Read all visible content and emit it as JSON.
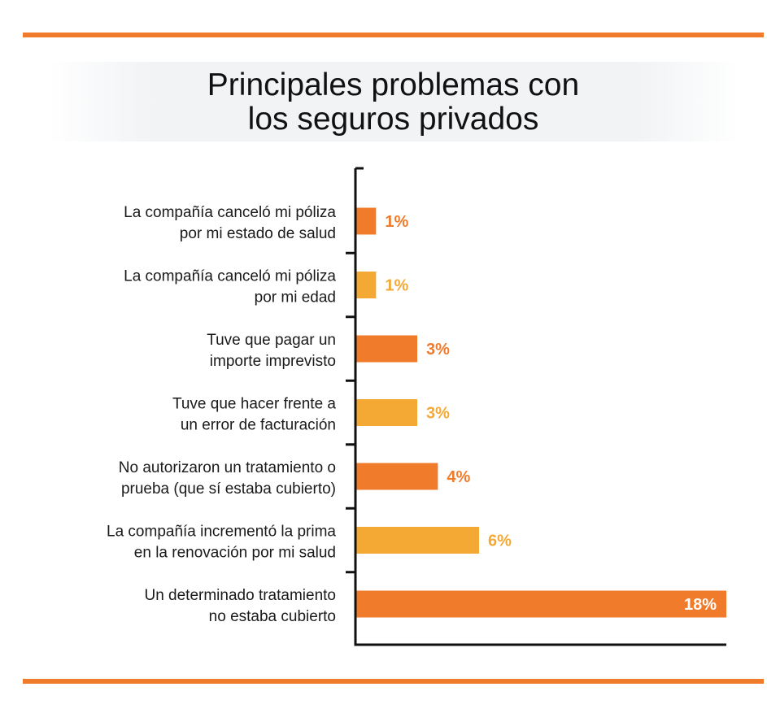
{
  "title": {
    "line1": "Principales problemas con",
    "line2": "los seguros privados"
  },
  "colors": {
    "rule": "#f07b2a",
    "bar_dark": "#f07b2a",
    "bar_light": "#f4a935",
    "axis": "#111111",
    "label": "#1a1a1a",
    "value_inside": "#ffffff"
  },
  "chart_data": {
    "type": "bar",
    "orientation": "horizontal",
    "title": "Principales problemas con los seguros privados",
    "categories": [
      [
        "La compañía canceló mi póliza",
        "por mi estado de salud"
      ],
      [
        "La compañía canceló mi póliza",
        "por mi edad"
      ],
      [
        "Tuve que pagar un",
        "importe imprevisto"
      ],
      [
        "Tuve que hacer frente a",
        "un error de facturación"
      ],
      [
        "No autorizaron un tratamiento o",
        "prueba (que sí estaba cubierto)"
      ],
      [
        "La compañía incrementó la prima",
        "en la renovación por mi salud"
      ],
      [
        "Un determinado tratamiento",
        "no estaba cubierto"
      ]
    ],
    "values": [
      1,
      1,
      3,
      3,
      4,
      6,
      18
    ],
    "value_labels": [
      "1%",
      "1%",
      "3%",
      "3%",
      "4%",
      "6%",
      "18%"
    ],
    "bar_colors": [
      "#f07b2a",
      "#f4a935",
      "#f07b2a",
      "#f4a935",
      "#f07b2a",
      "#f4a935",
      "#f07b2a"
    ],
    "xlim": [
      0,
      18
    ],
    "xlabel": "",
    "ylabel": "",
    "grid": false,
    "legend": "none"
  }
}
